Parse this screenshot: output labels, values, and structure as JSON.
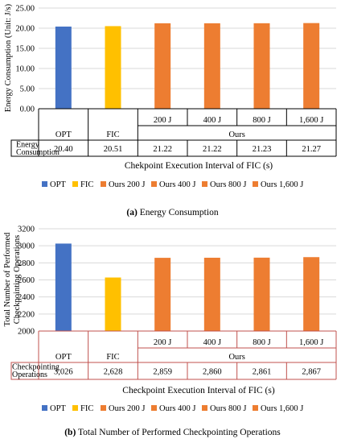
{
  "chart_data": [
    {
      "type": "bar",
      "ylabel": "Energy Consumption (Unit: J/s)",
      "xlabel": "Chekpoint Execution Interval of FIC (s)",
      "ylim": [
        0,
        25
      ],
      "y_ticks": [
        "0.00",
        "5.00",
        "10.00",
        "15.00",
        "20.00",
        "25.00"
      ],
      "grid": "horizontal",
      "legend_position": "bottom",
      "group_label": "Ours",
      "categories": [
        "OPT",
        "FIC",
        "200 J",
        "400 J",
        "800 J",
        "1,600 J"
      ],
      "series": [
        {
          "name": "OPT",
          "color": "#4472C4",
          "values": [
            20.4,
            null,
            null,
            null,
            null,
            null
          ]
        },
        {
          "name": "FIC",
          "color": "#FFC000",
          "values": [
            null,
            20.51,
            null,
            null,
            null,
            null
          ]
        },
        {
          "name": "Ours 200 J",
          "color": "#ED7D31",
          "values": [
            null,
            null,
            21.22,
            null,
            null,
            null
          ]
        },
        {
          "name": "Ours 400 J",
          "color": "#ED7D31",
          "values": [
            null,
            null,
            null,
            21.22,
            null,
            null
          ]
        },
        {
          "name": "Ours 800 J",
          "color": "#ED7D31",
          "values": [
            null,
            null,
            null,
            null,
            21.23,
            null
          ]
        },
        {
          "name": "Ours 1,600 J",
          "color": "#ED7D31",
          "values": [
            null,
            null,
            null,
            null,
            null,
            21.27
          ]
        }
      ],
      "table_row_label": [
        "Energy",
        "Consumption"
      ],
      "table_values": [
        "20.40",
        "20.51",
        "21.22",
        "21.22",
        "21.23",
        "21.27"
      ],
      "caption_prefix": "(a)",
      "caption_text": " Energy Consumption"
    },
    {
      "type": "bar",
      "ylabel": [
        "Total Number of Performed",
        "Checkpointing Operations"
      ],
      "xlabel": "Checkpoint Execution Interval of FIC (s)",
      "ylim": [
        2000,
        3200
      ],
      "y_ticks": [
        "2000",
        "2200",
        "2400",
        "2600",
        "2800",
        "3000",
        "3200"
      ],
      "grid": "horizontal",
      "legend_position": "bottom",
      "group_label": "Ours",
      "categories": [
        "OPT",
        "FIC",
        "200 J",
        "400 J",
        "800 J",
        "1,600 J"
      ],
      "series": [
        {
          "name": "OPT",
          "color": "#4472C4",
          "values": [
            3026,
            null,
            null,
            null,
            null,
            null
          ]
        },
        {
          "name": "FIC",
          "color": "#FFC000",
          "values": [
            null,
            2628,
            null,
            null,
            null,
            null
          ]
        },
        {
          "name": "Ours 200 J",
          "color": "#ED7D31",
          "values": [
            null,
            null,
            2859,
            null,
            null,
            null
          ]
        },
        {
          "name": "Ours 400 J",
          "color": "#ED7D31",
          "values": [
            null,
            null,
            null,
            2860,
            null,
            null
          ]
        },
        {
          "name": "Ours 800 J",
          "color": "#ED7D31",
          "values": [
            null,
            null,
            null,
            null,
            2861,
            null
          ]
        },
        {
          "name": "Ours 1,600 J",
          "color": "#ED7D31",
          "values": [
            null,
            null,
            null,
            null,
            null,
            2867
          ]
        }
      ],
      "table_row_label": [
        "Checkpointing",
        "Operations"
      ],
      "table_values": [
        "3,026",
        "2,628",
        "2,859",
        "2,860",
        "2,861",
        "2,867"
      ],
      "caption_prefix": "(b)",
      "caption_text": " Total Number of Performed Checkpointing Operations"
    }
  ]
}
